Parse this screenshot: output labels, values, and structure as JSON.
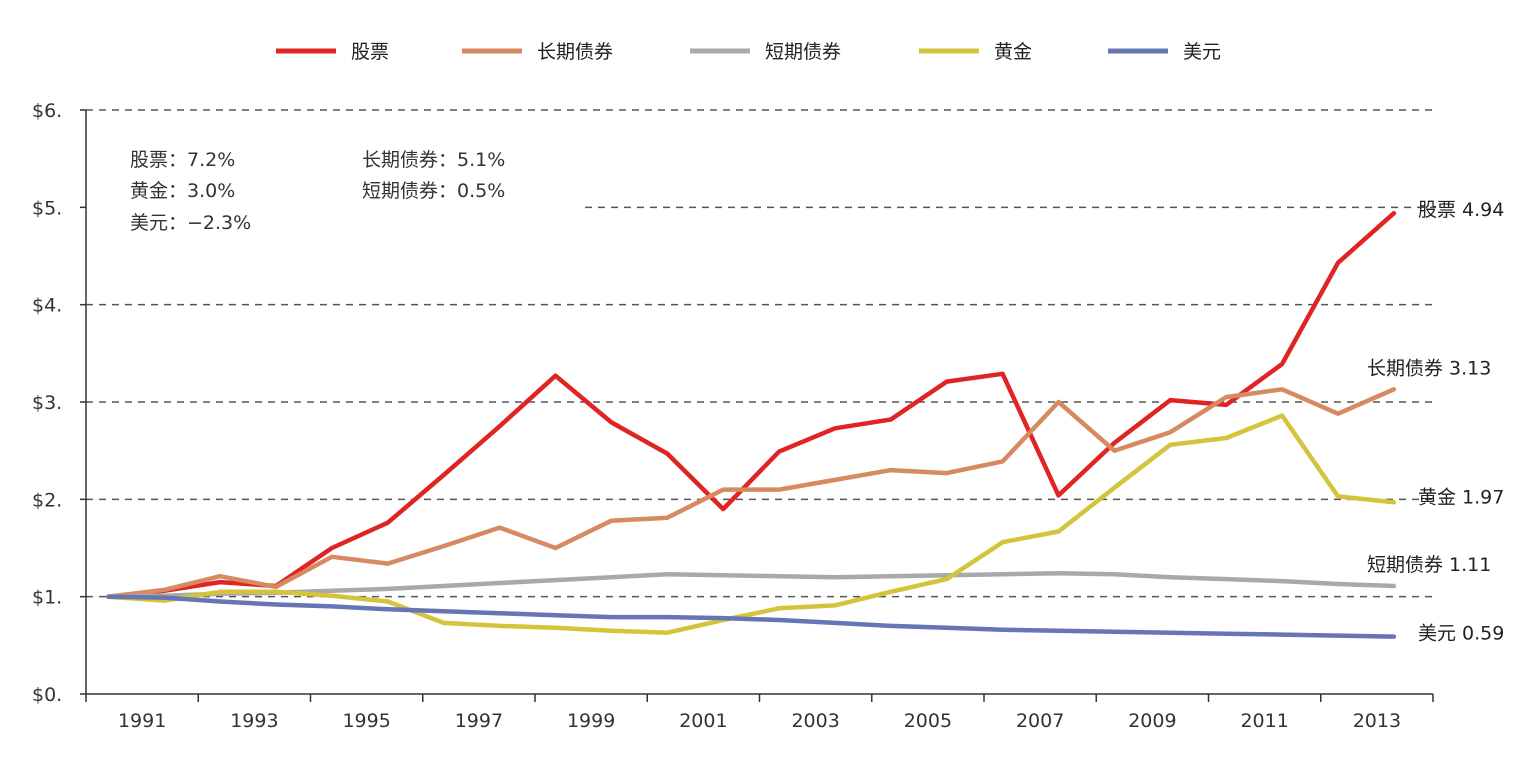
{
  "chart_data": {
    "type": "line",
    "ylim": [
      0,
      6
    ],
    "yticks": [
      "$0.",
      "$1.",
      "$2.",
      "$3.",
      "$4.",
      "$5.",
      "$6."
    ],
    "xticks": [
      "1991",
      "1993",
      "1995",
      "1997",
      "1999",
      "2001",
      "2003",
      "2005",
      "2007",
      "2009",
      "2011",
      "2013"
    ],
    "x": [
      1991,
      1992,
      1993,
      1994,
      1995,
      1996,
      1997,
      1998,
      1999,
      2000,
      2001,
      2002,
      2003,
      2004,
      2005,
      2006,
      2007,
      2008,
      2009,
      2010,
      2011,
      2012,
      2013,
      2014
    ],
    "xlim": [
      1990.6,
      2014.7
    ],
    "grid": "dashed horizontal",
    "legend_position": "top",
    "series": [
      {
        "name": "股票",
        "color": "#e02424",
        "end_label": "股票 4.94",
        "values": [
          1.0,
          1.06,
          1.15,
          1.11,
          1.5,
          1.76,
          2.25,
          2.75,
          3.27,
          2.79,
          2.47,
          1.9,
          2.49,
          2.73,
          2.82,
          3.21,
          3.29,
          2.04,
          2.58,
          3.02,
          2.97,
          3.39,
          4.43,
          4.94
        ]
      },
      {
        "name": "长期债券",
        "color": "#d68a62",
        "end_label": "长期债券 3.13",
        "values": [
          1.0,
          1.07,
          1.21,
          1.1,
          1.41,
          1.34,
          1.52,
          1.71,
          1.5,
          1.78,
          1.81,
          2.1,
          2.1,
          2.2,
          2.3,
          2.27,
          2.39,
          3.0,
          2.5,
          2.69,
          3.05,
          3.13,
          2.88,
          3.13
        ]
      },
      {
        "name": "短期债券",
        "color": "#a9a9a9",
        "end_label": "短期债券 1.11",
        "values": [
          1.0,
          1.01,
          1.03,
          1.04,
          1.06,
          1.08,
          1.11,
          1.14,
          1.17,
          1.2,
          1.23,
          1.22,
          1.21,
          1.2,
          1.21,
          1.22,
          1.23,
          1.24,
          1.23,
          1.2,
          1.18,
          1.16,
          1.13,
          1.11
        ]
      },
      {
        "name": "黄金",
        "color": "#d4c43c",
        "end_label": "黄金 1.97",
        "values": [
          1.0,
          0.96,
          1.05,
          1.05,
          1.01,
          0.95,
          0.73,
          0.7,
          0.68,
          0.65,
          0.63,
          0.76,
          0.88,
          0.91,
          1.05,
          1.18,
          1.56,
          1.67,
          2.12,
          2.56,
          2.63,
          2.86,
          2.03,
          1.97
        ]
      },
      {
        "name": "美元",
        "color": "#6675b3",
        "end_label": "美元 0.59",
        "values": [
          1.0,
          0.99,
          0.95,
          0.92,
          0.9,
          0.87,
          0.85,
          0.83,
          0.81,
          0.79,
          0.79,
          0.78,
          0.76,
          0.73,
          0.7,
          0.68,
          0.66,
          0.65,
          0.64,
          0.63,
          0.62,
          0.61,
          0.6,
          0.59
        ]
      }
    ],
    "annotations": [
      "股票：7.2%",
      "黄金：3.0%",
      "美元：−2.3%",
      "长期债券：5.1%",
      "短期债券：0.5%"
    ]
  }
}
